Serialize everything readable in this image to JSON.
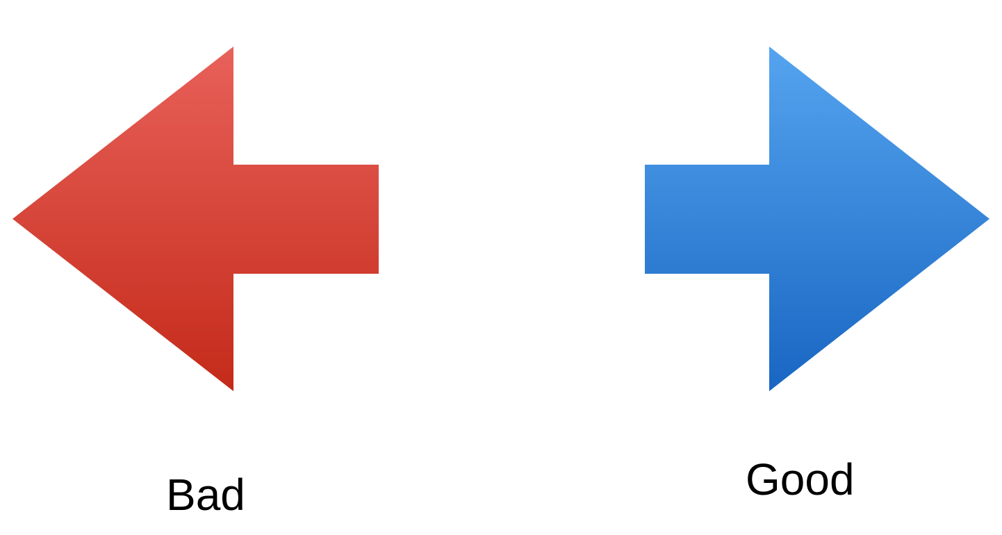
{
  "options": [
    {
      "id": "bad",
      "label": "Bad",
      "direction": "left",
      "icon": "left-arrow-icon",
      "colors": {
        "top": "#e8615a",
        "bottom": "#c42a19"
      }
    },
    {
      "id": "good",
      "label": "Good",
      "direction": "right",
      "icon": "right-arrow-icon",
      "colors": {
        "top": "#55a4ef",
        "bottom": "#1866c2"
      }
    }
  ]
}
